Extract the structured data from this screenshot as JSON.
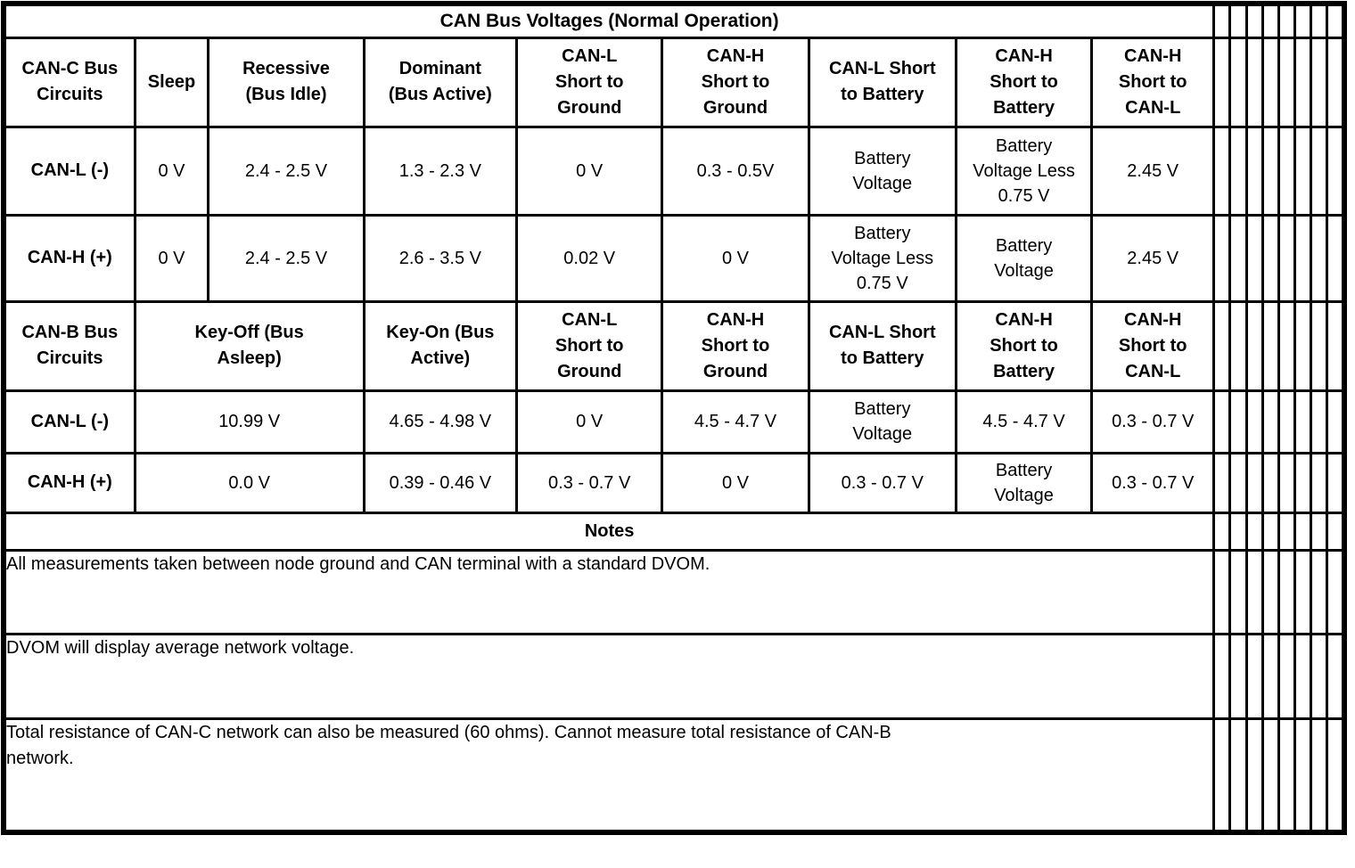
{
  "page": {
    "background_color": "#ffffff",
    "line_color": "#000000",
    "text_color": "#000000"
  },
  "table": {
    "title": "CAN Bus Voltages (Normal Operation)",
    "canc_section": {
      "headers": [
        "CAN-C Bus\nCircuits",
        "Sleep",
        "Recessive\n(Bus Idle)",
        "Dominant\n(Bus Active)",
        "CAN-L\nShort to\nGround",
        "CAN-H\nShort to\nGround",
        "CAN-L Short\nto Battery",
        "CAN-H\nShort to\nBattery",
        "CAN-H\nShort to\nCAN-L"
      ],
      "rows": [
        {
          "label": "CAN-L (-)",
          "values": [
            "0 V",
            "2.4 - 2.5 V",
            "1.3 - 2.3 V",
            "0 V",
            "0.3 - 0.5V",
            "Battery\nVoltage",
            "Battery\nVoltage Less\n0.75 V",
            "2.45 V"
          ]
        },
        {
          "label": "CAN-H (+)",
          "values": [
            "0 V",
            "2.4 - 2.5 V",
            "2.6 - 3.5 V",
            "0.02 V",
            "0 V",
            "Battery\nVoltage Less\n0.75 V",
            "Battery\nVoltage",
            "2.45 V"
          ]
        }
      ]
    },
    "canb_section": {
      "headers": [
        "CAN-B Bus\nCircuits",
        "Key-Off (Bus\nAsleep)",
        "Key-On (Bus\nActive)",
        "CAN-L\nShort to\nGround",
        "CAN-H\nShort to\nGround",
        "CAN-L Short\nto Battery",
        "CAN-H\nShort to\nBattery",
        "CAN-H\nShort to\nCAN-L"
      ],
      "rows": [
        {
          "label": "CAN-L (-)",
          "values": [
            "10.99 V",
            "4.65 - 4.98 V",
            "0 V",
            "4.5 - 4.7 V",
            "Battery\nVoltage",
            "4.5 - 4.7 V",
            "0.3 - 0.7 V"
          ]
        },
        {
          "label": "CAN-H (+)",
          "values": [
            "0.0 V",
            "0.39 - 0.46 V",
            "0.3 - 0.7 V",
            "0 V",
            "0.3 - 0.7 V",
            "Battery\nVoltage",
            "0.3 - 0.7 V"
          ]
        }
      ]
    },
    "notes_section": {
      "header": "Notes",
      "notes": [
        "All measurements taken between node ground and CAN terminal with a standard DVOM.",
        "DVOM will display average network voltage.",
        "Total resistance of CAN-C network can also be measured (60 ohms). Cannot measure total resistance of CAN-B\nnetwork."
      ]
    }
  }
}
